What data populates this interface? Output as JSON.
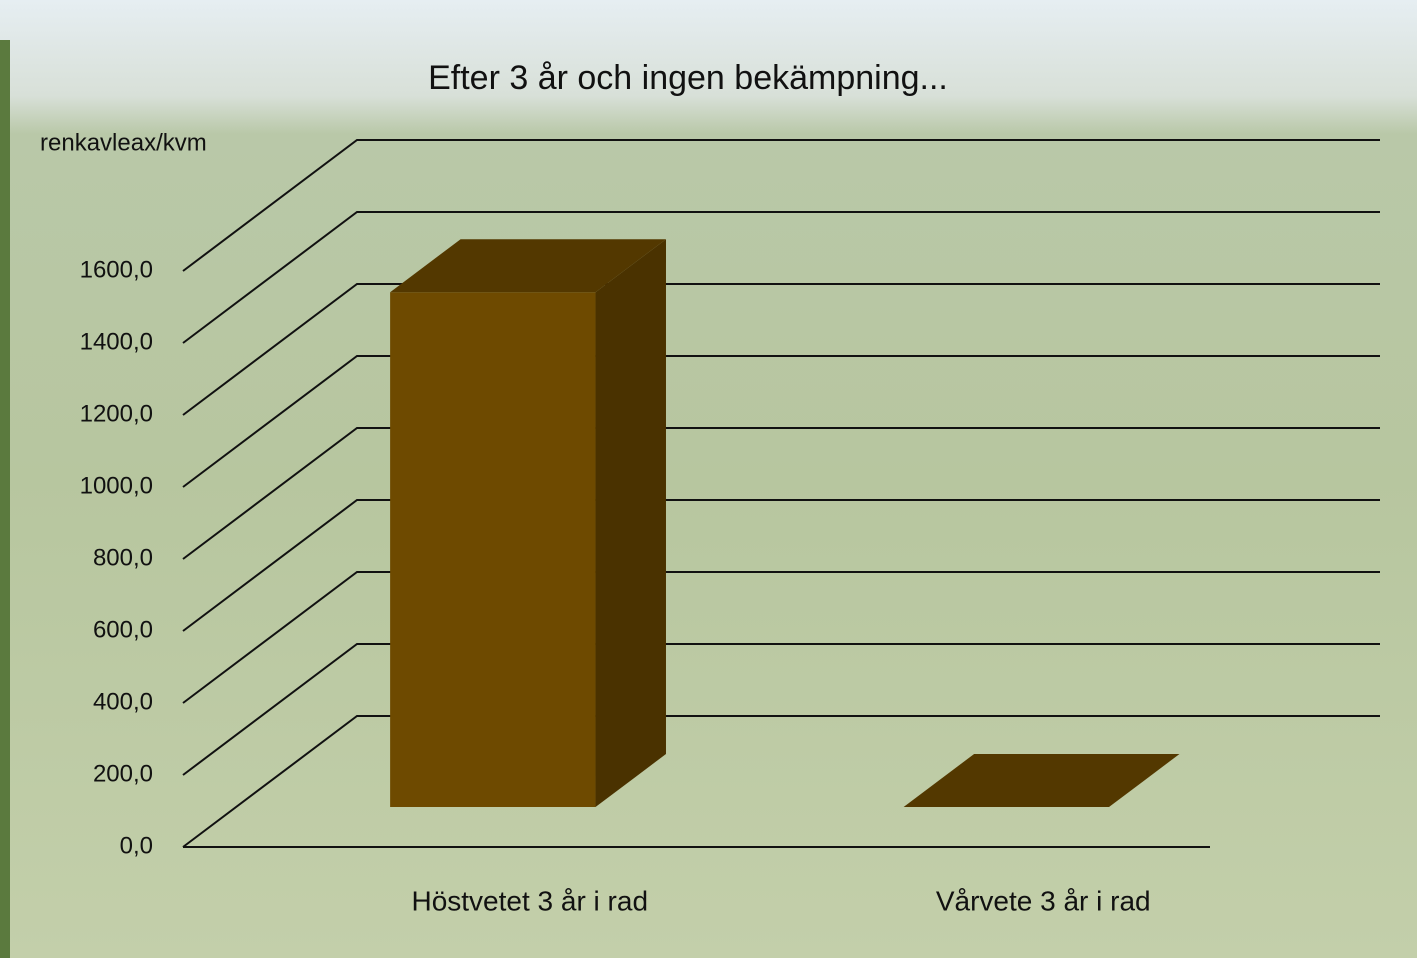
{
  "chart_data": {
    "type": "bar3d",
    "title": "Efter 3 år och ingen bekämpning...",
    "y_label": "renkavleax/kvm",
    "categories": [
      "Höstvetet 3 år i rad",
      "Vårvete 3 år i rad"
    ],
    "values": [
      1430,
      0
    ],
    "color": "#6e4a00",
    "ylim": [
      0,
      1600
    ],
    "yticks": [
      {
        "value": 0,
        "label": "0,0"
      },
      {
        "value": 200,
        "label": "200,0"
      },
      {
        "value": 400,
        "label": "400,0"
      },
      {
        "value": 600,
        "label": "600,0"
      },
      {
        "value": 800,
        "label": "800,0"
      },
      {
        "value": 1000,
        "label": "1000,0"
      },
      {
        "value": 1200,
        "label": "1200,0"
      },
      {
        "value": 1400,
        "label": "1400,0"
      },
      {
        "value": 1600,
        "label": "1600,0"
      }
    ],
    "grid": true
  }
}
